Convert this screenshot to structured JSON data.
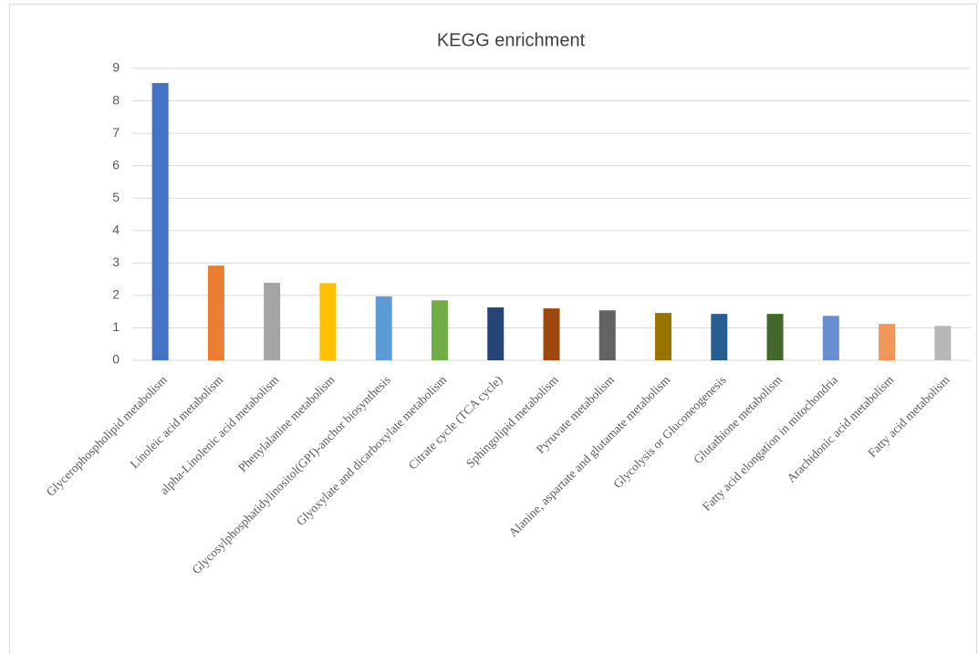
{
  "chart_data": {
    "type": "bar",
    "title": "KEGG  enrichment",
    "categories": [
      "Glycerophospholipid metabolism",
      "Linoleic acid metabolism",
      "alpha-Linolenic acid metabolism",
      "Phenylalanine metabolism",
      "Glycosylphosphatidylinositol(GPI)-anchor biosynthesis",
      "Glyoxylate and dicarboxylate metabolism",
      "Citrate cycle (TCA cycle)",
      "Sphingolipid metabolism",
      "Pyruvate metabolism",
      "Alanine, aspartate and glutamate metabolism",
      "Glycolysis or Gluconeogenesis",
      "Glutathione metabolism",
      "Fatty acid elongation in mitochondria",
      "Arachidonic acid metabolism",
      "Fatty acid metabolism"
    ],
    "values": [
      8.55,
      2.92,
      2.39,
      2.38,
      1.97,
      1.85,
      1.63,
      1.6,
      1.54,
      1.46,
      1.43,
      1.43,
      1.37,
      1.12,
      1.06
    ],
    "colors": [
      "#4472c4",
      "#ed7d31",
      "#a5a5a5",
      "#ffc000",
      "#5b9bd5",
      "#70ad47",
      "#264478",
      "#9e480e",
      "#636363",
      "#997300",
      "#255e91",
      "#43682b",
      "#698ed0",
      "#f1975a",
      "#b7b7b7"
    ],
    "ylim": [
      0,
      9
    ],
    "yticks": [
      0,
      1,
      2,
      3,
      4,
      5,
      6,
      7,
      8,
      9
    ],
    "grid": true
  }
}
